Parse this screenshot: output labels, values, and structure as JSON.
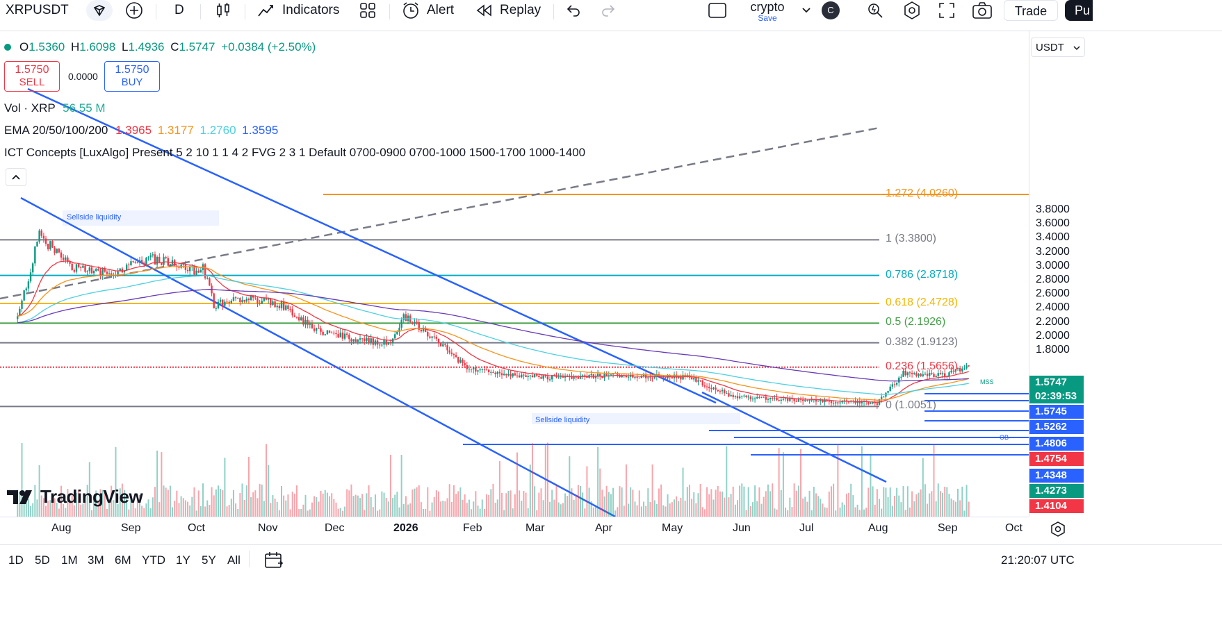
{
  "toolbar": {
    "symbol": "XRPUSDT",
    "interval": "D",
    "indicators_label": "Indicators",
    "alert_label": "Alert",
    "replay_label": "Replay",
    "layout_name": "crypto",
    "layout_sub": "Save",
    "avatar_letter": "C",
    "trade_label": "Trade",
    "publish_label": "Pu"
  },
  "legend": {
    "open_label": "O",
    "open": "1.5360",
    "high_label": "H",
    "high": "1.6098",
    "low_label": "L",
    "low": "1.4936",
    "close_label": "C",
    "close": "1.5747",
    "change": "+0.0384 (+2.50%)",
    "sell_price": "1.5750",
    "sell_label": "SELL",
    "spread": "0.0000",
    "buy_price": "1.5750",
    "buy_label": "BUY",
    "vol_label": "Vol · XRP",
    "vol_value": "56.55 M",
    "ema_label": "EMA 20/50/100/200",
    "ema_values": [
      "1.3965",
      "1.3177",
      "1.2760",
      "1.3595"
    ],
    "ict_label": "ICT Concepts [LuxAlgo] Present 5 2 10 1 1 4 2 FVG 2 3 1 Default 0700-0900 0700-1000 1500-1700 1000-1400"
  },
  "colors": {
    "up": "#089981",
    "down": "#f23645",
    "channel": "#2962ff",
    "ema20": "#f23645",
    "ema50": "#f7931a",
    "ema100": "#4dd0e1",
    "ema200": "#673ab7"
  },
  "currency": "USDT",
  "price_axis": [
    "3.8000",
    "3.6000",
    "3.4000",
    "3.2000",
    "3.0000",
    "2.8000",
    "2.6000",
    "2.4000",
    "2.2000",
    "2.0000",
    "1.8000"
  ],
  "price_tags": [
    {
      "value": "1.5747",
      "color": "#089981"
    },
    {
      "value": "02:39:53",
      "color": "#089981"
    },
    {
      "value": "1.5745",
      "color": "#2962ff"
    },
    {
      "value": "1.5262",
      "color": "#2962ff"
    },
    {
      "value": "1.4806",
      "color": "#2962ff"
    },
    {
      "value": "1.4754",
      "color": "#f23645"
    },
    {
      "value": "1.4348",
      "color": "#2962ff"
    },
    {
      "value": "1.4273",
      "color": "#089981"
    },
    {
      "value": "1.4104",
      "color": "#f23645"
    }
  ],
  "fib_levels": [
    {
      "label": "1.272 (4.0260)",
      "price": 4.026,
      "color": "#f7931a"
    },
    {
      "label": "1 (3.3800)",
      "price": 3.38,
      "color": "#787b86"
    },
    {
      "label": "0.786 (2.8718)",
      "price": 2.8718,
      "color": "#00acc1"
    },
    {
      "label": "0.618 (2.4728)",
      "price": 2.4728,
      "color": "#f7b500"
    },
    {
      "label": "0.5 (2.1926)",
      "price": 2.1926,
      "color": "#43a047"
    },
    {
      "label": "0.382 (1.9123)",
      "price": 1.9123,
      "color": "#787b86"
    },
    {
      "label": "0.236 (1.5656)",
      "price": 1.5656,
      "color": "#f23645"
    },
    {
      "label": "0 (1.0051)",
      "price": 1.0051,
      "color": "#787b86"
    }
  ],
  "annotations": {
    "sellside1": "Sellside liquidity",
    "sellside2": "Sellside liquidity",
    "mss": "MSS",
    "ob": "OB"
  },
  "time_axis": [
    "Aug",
    "Sep",
    "Oct",
    "Nov",
    "Dec",
    "2026",
    "Feb",
    "Mar",
    "Apr",
    "May",
    "Jun",
    "Jul",
    "Aug",
    "Sep",
    "Oct"
  ],
  "ranges": [
    "1D",
    "5D",
    "1M",
    "3M",
    "6M",
    "YTD",
    "1Y",
    "5Y",
    "All"
  ],
  "clock": "21:20:07 UTC",
  "watermark": "TradingView",
  "chart_data": {
    "type": "candlestick",
    "symbol": "XRPUSDT",
    "interval": "1D",
    "ylim": [
      1.41,
      3.9
    ],
    "ema_periods": [
      20,
      50,
      100,
      200
    ],
    "approx_close_path": [
      {
        "date": "2025-07-12",
        "close": 2.25
      },
      {
        "date": "2025-07-22",
        "close": 3.45
      },
      {
        "date": "2025-08-05",
        "close": 3.0
      },
      {
        "date": "2025-08-20",
        "close": 2.9
      },
      {
        "date": "2025-09-12",
        "close": 3.1
      },
      {
        "date": "2025-10-01",
        "close": 2.95
      },
      {
        "date": "2025-10-05",
        "close": 3.0
      },
      {
        "date": "2025-10-10",
        "close": 2.45
      },
      {
        "date": "2025-10-25",
        "close": 2.55
      },
      {
        "date": "2025-11-10",
        "close": 2.45
      },
      {
        "date": "2025-11-25",
        "close": 2.1
      },
      {
        "date": "2025-12-15",
        "close": 1.95
      },
      {
        "date": "2025-12-30",
        "close": 1.9
      },
      {
        "date": "2026-01-05",
        "close": 2.3
      },
      {
        "date": "2026-01-20",
        "close": 1.95
      },
      {
        "date": "2026-02-03",
        "close": 1.55
      },
      {
        "date": "2026-02-20",
        "close": 1.45
      },
      {
        "date": "2026-03-15",
        "close": 1.42
      },
      {
        "date": "2026-04-10",
        "close": 1.45
      },
      {
        "date": "2026-05-15",
        "close": 1.42
      },
      {
        "date": "2026-06-05",
        "close": 1.15
      },
      {
        "date": "2026-07-01",
        "close": 1.1
      },
      {
        "date": "2026-08-10",
        "close": 1.05
      },
      {
        "date": "2026-08-22",
        "close": 1.48
      },
      {
        "date": "2026-09-10",
        "close": 1.45
      },
      {
        "date": "2026-09-21",
        "close": 1.5747
      }
    ]
  }
}
